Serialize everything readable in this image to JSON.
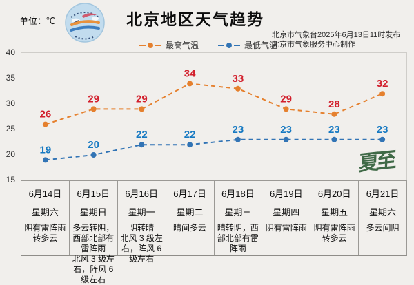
{
  "header": {
    "unit_label": "单位：℃",
    "title": "北京地区天气趋势",
    "issued_line1": "北京市气象台2025年6月13日11时发布",
    "issued_line2": "北京市气象服务中心制作"
  },
  "legend": {
    "items": [
      {
        "label": "最高气温",
        "color": "#e5802e"
      },
      {
        "label": "最低气温",
        "color": "#3274b5"
      }
    ]
  },
  "watermark_text": "夏至",
  "chart_data": {
    "type": "line",
    "title": "北京地区天气趋势",
    "categories": [
      "6月14日",
      "6月15日",
      "6月16日",
      "6月17日",
      "6月18日",
      "6月19日",
      "6月20日",
      "6月21日"
    ],
    "series": [
      {
        "name": "最高气温",
        "values": [
          26,
          29,
          29,
          34,
          33,
          29,
          28,
          32
        ],
        "line_color": "#e5802e",
        "label_color": "#d21f2c"
      },
      {
        "name": "最低气温",
        "values": [
          19,
          20,
          22,
          22,
          23,
          23,
          23,
          23
        ],
        "line_color": "#3274b5",
        "label_color": "#1679c2"
      }
    ],
    "ylim": [
      15,
      40
    ],
    "yticks": [
      40,
      35,
      30,
      25,
      20,
      15
    ],
    "line_style": "dashed",
    "grid": false,
    "legend_position": "top"
  },
  "table": {
    "days": [
      {
        "date": "6月14日",
        "weekday": "星期六",
        "weather": "阴有雷阵雨转多云"
      },
      {
        "date": "6月15日",
        "weekday": "星期日",
        "weather": "多云转阴，西部北部有雷阵雨\n北风 3 级左右，阵风 6 级左右"
      },
      {
        "date": "6月16日",
        "weekday": "星期一",
        "weather": "阴转晴\n北风 3 级左右，阵风 6 级左右"
      },
      {
        "date": "6月17日",
        "weekday": "星期二",
        "weather": "晴间多云"
      },
      {
        "date": "6月18日",
        "weekday": "星期三",
        "weather": "晴转阴，西部北部有雷阵雨"
      },
      {
        "date": "6月19日",
        "weekday": "星期四",
        "weather": "阴有雷阵雨"
      },
      {
        "date": "6月20日",
        "weekday": "星期五",
        "weather": "阴有雷阵雨转多云"
      },
      {
        "date": "6月21日",
        "weekday": "星期六",
        "weather": "多云间阴"
      }
    ]
  }
}
